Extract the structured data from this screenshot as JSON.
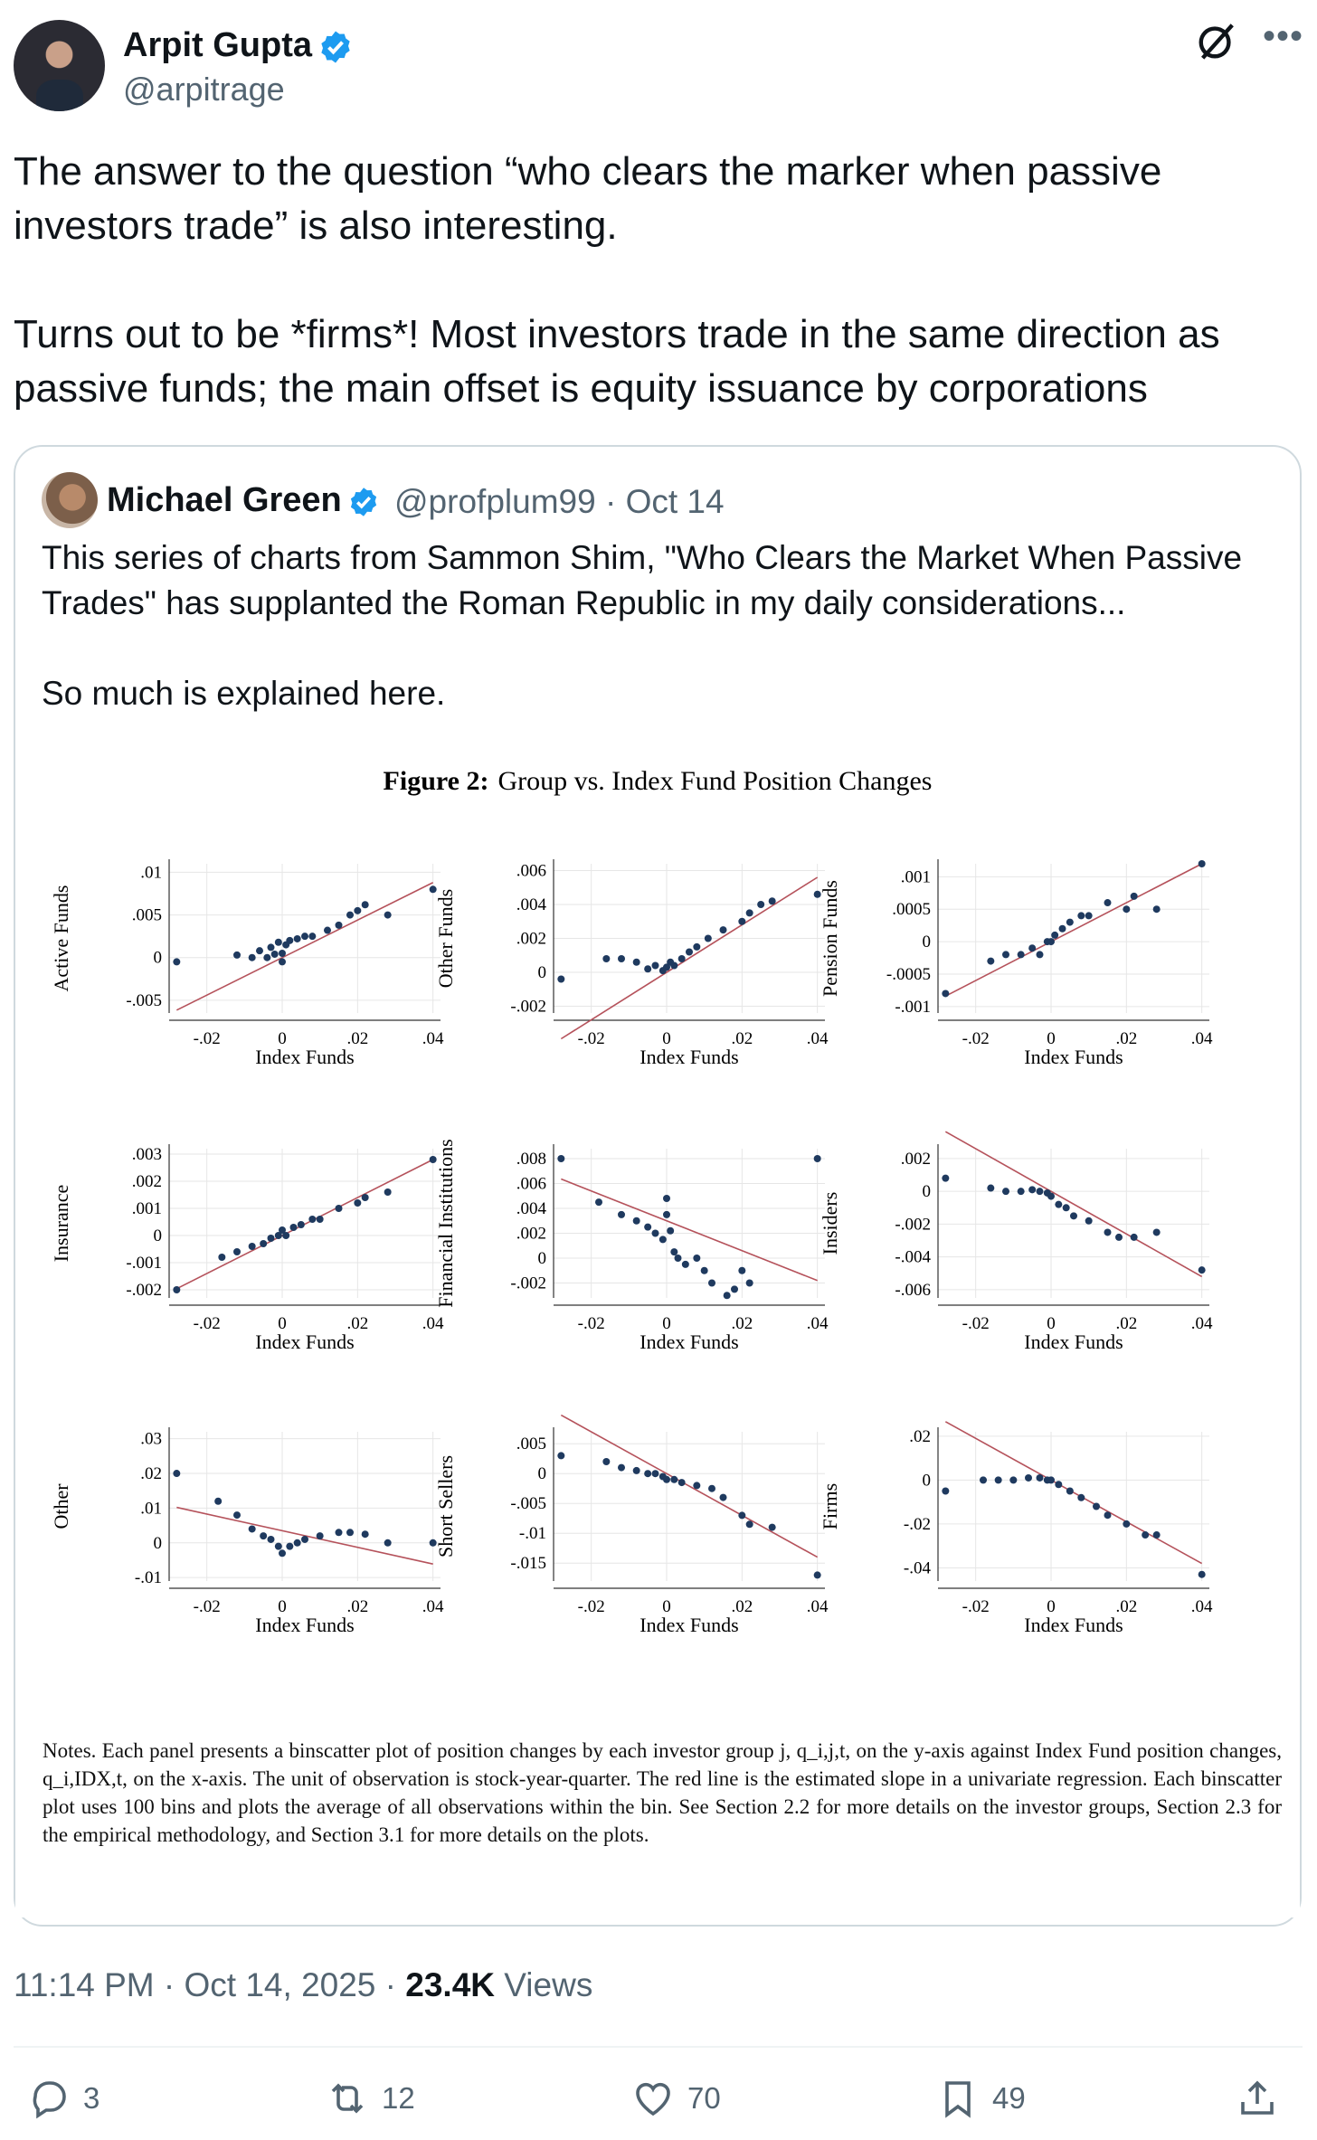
{
  "tweet": {
    "author_name": "Arpit Gupta",
    "author_handle": "@arpitrage",
    "text": "The answer to the question “who clears the marker when passive investors trade” is also interesting.\n\nTurns out to be *firms*! Most investors trade in the same direction as passive funds; the main offset is equity issuance by corporations",
    "time": "11:14 PM",
    "date": "Oct 14, 2025",
    "views_count": "23.4K",
    "views_label": "Views",
    "replies": "3",
    "reposts": "12",
    "likes": "70",
    "bookmarks": "49"
  },
  "quote": {
    "author_name": "Michael Green",
    "author_handle": "@profplum99",
    "date": "Oct 14",
    "text": "This series of charts from Sammon Shim, \"Who Clears the Market When Passive Trades\" has supplanted the Roman Republic in my daily considerations...\n\nSo much is explained here."
  },
  "figure": {
    "title_prefix": "Figure 2:",
    "title": "Group vs. Index Fund Position Changes",
    "notes": "Notes. Each panel presents a binscatter plot of position changes by each investor group j, q_i,j,t, on the y-axis against Index Fund position changes, q_i,IDX,t, on the x-axis. The unit of observation is stock-year-quarter. The red line is the estimated slope in a univariate regression. Each binscatter plot uses 100 bins and plots the average of all observations within the bin. See Section 2.2 for more details on the investor groups, Section 2.3 for the empirical methodology, and Section 3.1 for more details on the plots."
  },
  "colors": {
    "accent": "#1d9bf0",
    "point": "#1f3a5f",
    "fit_line": "#b5525b",
    "muted": "#536471"
  },
  "chart_data": [
    {
      "type": "scatter",
      "ylabel": "Active Funds",
      "xlabel": "Index Funds",
      "xticks": [
        "-.02",
        "0",
        ".02",
        ".04"
      ],
      "yticks": [
        ".01",
        ".005",
        "0",
        "-.005"
      ],
      "xlim": [
        -0.03,
        0.042
      ],
      "ylim": [
        -0.0065,
        0.011
      ],
      "slope": 0.22,
      "intercept": 0.0,
      "points": [
        [
          -0.028,
          -0.0005
        ],
        [
          -0.012,
          0.0003
        ],
        [
          -0.008,
          0.0
        ],
        [
          -0.006,
          0.0008
        ],
        [
          -0.004,
          0.0
        ],
        [
          -0.003,
          0.0012
        ],
        [
          -0.002,
          0.0004
        ],
        [
          -0.001,
          0.0018
        ],
        [
          0.0,
          0.0005
        ],
        [
          0.0,
          -0.0005
        ],
        [
          0.001,
          0.0015
        ],
        [
          0.002,
          0.002
        ],
        [
          0.004,
          0.0022
        ],
        [
          0.006,
          0.0025
        ],
        [
          0.008,
          0.0025
        ],
        [
          0.012,
          0.0032
        ],
        [
          0.015,
          0.0038
        ],
        [
          0.018,
          0.005
        ],
        [
          0.02,
          0.0055
        ],
        [
          0.022,
          0.0062
        ],
        [
          0.028,
          0.005
        ],
        [
          0.04,
          0.008
        ]
      ]
    },
    {
      "type": "scatter",
      "ylabel": "Other Funds",
      "xlabel": "Index Funds",
      "xticks": [
        "-.02",
        "0",
        ".02",
        ".04"
      ],
      "yticks": [
        ".006",
        ".004",
        ".002",
        "0",
        "-.002"
      ],
      "xlim": [
        -0.03,
        0.042
      ],
      "ylim": [
        -0.0024,
        0.0064
      ],
      "slope": 0.14,
      "intercept": 0.0,
      "points": [
        [
          -0.028,
          -0.0004
        ],
        [
          -0.016,
          0.0008
        ],
        [
          -0.012,
          0.0008
        ],
        [
          -0.008,
          0.0006
        ],
        [
          -0.005,
          0.0002
        ],
        [
          -0.003,
          0.0004
        ],
        [
          -0.001,
          0.0001
        ],
        [
          0.0,
          0.0003
        ],
        [
          0.001,
          0.0006
        ],
        [
          0.002,
          0.0004
        ],
        [
          0.004,
          0.0008
        ],
        [
          0.006,
          0.0012
        ],
        [
          0.008,
          0.0015
        ],
        [
          0.011,
          0.002
        ],
        [
          0.015,
          0.0025
        ],
        [
          0.02,
          0.003
        ],
        [
          0.022,
          0.0035
        ],
        [
          0.025,
          0.004
        ],
        [
          0.028,
          0.0042
        ],
        [
          0.04,
          0.0046
        ]
      ]
    },
    {
      "type": "scatter",
      "ylabel": "Pension Funds",
      "xlabel": "Index Funds",
      "xticks": [
        "-.02",
        "0",
        ".02",
        ".04"
      ],
      "yticks": [
        ".001",
        ".0005",
        "0",
        "-.0005",
        "-.001"
      ],
      "xlim": [
        -0.03,
        0.042
      ],
      "ylim": [
        -0.0011,
        0.0012
      ],
      "slope": 0.03,
      "intercept": 0.0,
      "points": [
        [
          -0.028,
          -0.0008
        ],
        [
          -0.016,
          -0.0003
        ],
        [
          -0.012,
          -0.0002
        ],
        [
          -0.008,
          -0.0002
        ],
        [
          -0.005,
          -0.0001
        ],
        [
          -0.003,
          -0.0002
        ],
        [
          -0.001,
          0.0
        ],
        [
          0.0,
          0.0
        ],
        [
          0.001,
          0.0001
        ],
        [
          0.003,
          0.0002
        ],
        [
          0.005,
          0.0003
        ],
        [
          0.008,
          0.0004
        ],
        [
          0.01,
          0.0004
        ],
        [
          0.015,
          0.0006
        ],
        [
          0.02,
          0.0005
        ],
        [
          0.022,
          0.0007
        ],
        [
          0.028,
          0.0005
        ],
        [
          0.04,
          0.0012
        ]
      ]
    },
    {
      "type": "scatter",
      "ylabel": "Insurance",
      "xlabel": "Index Funds",
      "xticks": [
        "-.02",
        "0",
        ".02",
        ".04"
      ],
      "yticks": [
        ".003",
        ".002",
        ".001",
        "0",
        "-.001",
        "-.002"
      ],
      "xlim": [
        -0.03,
        0.042
      ],
      "ylim": [
        -0.0023,
        0.0032
      ],
      "slope": 0.07,
      "intercept": 0.0,
      "points": [
        [
          -0.028,
          -0.002
        ],
        [
          -0.016,
          -0.0008
        ],
        [
          -0.012,
          -0.0006
        ],
        [
          -0.008,
          -0.0004
        ],
        [
          -0.005,
          -0.0003
        ],
        [
          -0.003,
          -0.0001
        ],
        [
          -0.001,
          0.0
        ],
        [
          0.0,
          0.0002
        ],
        [
          0.001,
          0.0
        ],
        [
          0.003,
          0.0003
        ],
        [
          0.005,
          0.0004
        ],
        [
          0.008,
          0.0006
        ],
        [
          0.01,
          0.0006
        ],
        [
          0.015,
          0.001
        ],
        [
          0.02,
          0.0012
        ],
        [
          0.022,
          0.0014
        ],
        [
          0.028,
          0.0016
        ],
        [
          0.04,
          0.0028
        ]
      ]
    },
    {
      "type": "scatter",
      "ylabel": "Financial Institutions",
      "xlabel": "Index Funds",
      "xticks": [
        "-.02",
        "0",
        ".02",
        ".04"
      ],
      "yticks": [
        ".008",
        ".006",
        ".004",
        ".002",
        "0",
        "-.002"
      ],
      "xlim": [
        -0.03,
        0.042
      ],
      "ylim": [
        -0.0032,
        0.0088
      ],
      "slope": -0.12,
      "intercept": 0.003,
      "points": [
        [
          -0.028,
          0.008
        ],
        [
          -0.018,
          0.0045
        ],
        [
          -0.012,
          0.0035
        ],
        [
          -0.008,
          0.003
        ],
        [
          -0.005,
          0.0025
        ],
        [
          -0.003,
          0.002
        ],
        [
          -0.001,
          0.0015
        ],
        [
          0.0,
          0.0048
        ],
        [
          0.0,
          0.0035
        ],
        [
          0.001,
          0.0022
        ],
        [
          0.002,
          0.0005
        ],
        [
          0.003,
          0.0
        ],
        [
          0.005,
          -0.0005
        ],
        [
          0.008,
          0.0
        ],
        [
          0.01,
          -0.001
        ],
        [
          0.012,
          -0.002
        ],
        [
          0.016,
          -0.003
        ],
        [
          0.018,
          -0.0025
        ],
        [
          0.02,
          -0.001
        ],
        [
          0.022,
          -0.002
        ],
        [
          0.04,
          0.008
        ]
      ]
    },
    {
      "type": "scatter",
      "ylabel": "Insiders",
      "xlabel": "Index Funds",
      "xticks": [
        "-.02",
        "0",
        ".02",
        ".04"
      ],
      "yticks": [
        ".002",
        "0",
        "-.002",
        "-.004",
        "-.006"
      ],
      "xlim": [
        -0.03,
        0.042
      ],
      "ylim": [
        -0.0065,
        0.0026
      ],
      "slope": -0.13,
      "intercept": 0.0,
      "points": [
        [
          -0.028,
          0.0008
        ],
        [
          -0.016,
          0.0002
        ],
        [
          -0.012,
          0.0
        ],
        [
          -0.008,
          0.0
        ],
        [
          -0.005,
          0.0001
        ],
        [
          -0.003,
          0.0
        ],
        [
          -0.001,
          -0.0001
        ],
        [
          0.0,
          -0.0003
        ],
        [
          0.002,
          -0.0008
        ],
        [
          0.004,
          -0.001
        ],
        [
          0.006,
          -0.0015
        ],
        [
          0.01,
          -0.0018
        ],
        [
          0.015,
          -0.0025
        ],
        [
          0.018,
          -0.0028
        ],
        [
          0.022,
          -0.0028
        ],
        [
          0.028,
          -0.0025
        ],
        [
          0.04,
          -0.0048
        ]
      ]
    },
    {
      "type": "scatter",
      "ylabel": "Other",
      "xlabel": "Index Funds",
      "xticks": [
        "-.02",
        "0",
        ".02",
        ".04"
      ],
      "yticks": [
        ".03",
        ".02",
        ".01",
        "0",
        "-.01"
      ],
      "xlim": [
        -0.03,
        0.042
      ],
      "ylim": [
        -0.011,
        0.032
      ],
      "slope": -0.24,
      "intercept": 0.0035,
      "points": [
        [
          -0.028,
          0.02
        ],
        [
          -0.017,
          0.012
        ],
        [
          -0.012,
          0.008
        ],
        [
          -0.008,
          0.004
        ],
        [
          -0.005,
          0.002
        ],
        [
          -0.003,
          0.001
        ],
        [
          -0.001,
          -0.001
        ],
        [
          0.0,
          -0.003
        ],
        [
          0.002,
          -0.001
        ],
        [
          0.004,
          0.0
        ],
        [
          0.006,
          0.001
        ],
        [
          0.01,
          0.002
        ],
        [
          0.015,
          0.003
        ],
        [
          0.018,
          0.003
        ],
        [
          0.022,
          0.0025
        ],
        [
          0.028,
          0.0
        ],
        [
          0.04,
          0.0
        ]
      ]
    },
    {
      "type": "scatter",
      "ylabel": "Short Sellers",
      "xlabel": "Index Funds",
      "xticks": [
        "-.02",
        "0",
        ".02",
        ".04"
      ],
      "yticks": [
        ".005",
        "0",
        "-.005",
        "-.01",
        "-.015"
      ],
      "xlim": [
        -0.03,
        0.042
      ],
      "ylim": [
        -0.018,
        0.007
      ],
      "slope": -0.35,
      "intercept": 0.0,
      "points": [
        [
          -0.028,
          0.003
        ],
        [
          -0.016,
          0.002
        ],
        [
          -0.012,
          0.001
        ],
        [
          -0.008,
          0.0005
        ],
        [
          -0.005,
          0.0
        ],
        [
          -0.003,
          0.0
        ],
        [
          -0.001,
          -0.0005
        ],
        [
          0.0,
          -0.001
        ],
        [
          0.002,
          -0.001
        ],
        [
          0.004,
          -0.0015
        ],
        [
          0.008,
          -0.002
        ],
        [
          0.012,
          -0.0025
        ],
        [
          0.015,
          -0.004
        ],
        [
          0.02,
          -0.007
        ],
        [
          0.022,
          -0.0085
        ],
        [
          0.028,
          -0.009
        ],
        [
          0.04,
          -0.017
        ]
      ]
    },
    {
      "type": "scatter",
      "ylabel": "Firms",
      "xlabel": "Index Funds",
      "xticks": [
        "-.02",
        "0",
        ".02",
        ".04"
      ],
      "yticks": [
        ".02",
        "0",
        "-.02",
        "-.04"
      ],
      "xlim": [
        -0.03,
        0.042
      ],
      "ylim": [
        -0.046,
        0.022
      ],
      "slope": -0.95,
      "intercept": 0.0,
      "points": [
        [
          -0.028,
          -0.005
        ],
        [
          -0.018,
          0.0
        ],
        [
          -0.014,
          0.0
        ],
        [
          -0.01,
          0.0
        ],
        [
          -0.006,
          0.001
        ],
        [
          -0.003,
          0.001
        ],
        [
          -0.001,
          0.0
        ],
        [
          0.0,
          0.0
        ],
        [
          0.002,
          -0.002
        ],
        [
          0.005,
          -0.005
        ],
        [
          0.008,
          -0.008
        ],
        [
          0.012,
          -0.012
        ],
        [
          0.015,
          -0.016
        ],
        [
          0.02,
          -0.02
        ],
        [
          0.025,
          -0.025
        ],
        [
          0.028,
          -0.025
        ],
        [
          0.04,
          -0.043
        ]
      ]
    }
  ]
}
